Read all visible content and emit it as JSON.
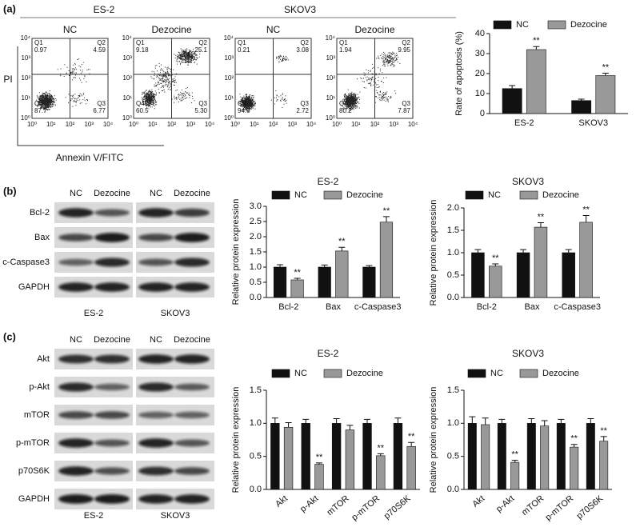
{
  "panel_labels": [
    "(a)",
    "(b)",
    "(c)"
  ],
  "panel_a": {
    "groups": [
      "ES-2",
      "SKOV3"
    ],
    "y_label": "PI",
    "x_label": "Annexin V/FITC",
    "axis_ticks": [
      "10⁰",
      "10¹",
      "10²",
      "10³",
      "10⁴"
    ],
    "plots": [
      {
        "title": "NC",
        "quadrants": [
          {
            "name": "Q1",
            "value": "0.97"
          },
          {
            "name": "Q2",
            "value": "4.59"
          },
          {
            "name": "Q3",
            "value": "6.77"
          },
          {
            "name": "Q4",
            "value": "87.7"
          }
        ]
      },
      {
        "title": "Dezocine",
        "quadrants": [
          {
            "name": "Q1",
            "value": "9.18"
          },
          {
            "name": "Q2",
            "value": "25.1"
          },
          {
            "name": "Q3",
            "value": "5.30"
          },
          {
            "name": "Q4",
            "value": "60.5"
          }
        ]
      },
      {
        "title": "NC",
        "quadrants": [
          {
            "name": "Q1",
            "value": "0.21"
          },
          {
            "name": "Q2",
            "value": "3.08"
          },
          {
            "name": "Q3",
            "value": "2.72"
          },
          {
            "name": "Q4",
            "value": "94.0"
          }
        ]
      },
      {
        "title": "Dezocine",
        "quadrants": [
          {
            "name": "Q1",
            "value": "1.94"
          },
          {
            "name": "Q2",
            "value": "9.95"
          },
          {
            "name": "Q3",
            "value": "7.87"
          },
          {
            "name": "Q4",
            "value": "80.2"
          }
        ]
      }
    ]
  },
  "panel_b": {
    "columns": [
      "NC",
      "Dezocine",
      "NC",
      "Dezocine"
    ],
    "rows": [
      "Bcl-2",
      "Bax",
      "c-Caspase3",
      "GAPDH"
    ],
    "cell_lines": [
      "ES-2",
      "SKOV3"
    ]
  },
  "panel_c": {
    "columns": [
      "NC",
      "Dezocine",
      "NC",
      "Dezocine"
    ],
    "rows": [
      "Akt",
      "p-Akt",
      "mTOR",
      "p-mTOR",
      "p70S6K",
      "GAPDH"
    ],
    "cell_lines": [
      "ES-2",
      "SKOV3"
    ]
  },
  "chart_data": [
    {
      "type": "bar",
      "y_label": "Rate of apoptosis (%)",
      "categories": [
        "ES-2",
        "SKOV3"
      ],
      "series": [
        {
          "name": "NC",
          "color": "#111111",
          "values": [
            12.5,
            6.5
          ],
          "errors": [
            1.5,
            0.7
          ]
        },
        {
          "name": "Dezocine",
          "color": "#999999",
          "values": [
            32,
            19
          ],
          "errors": [
            1.5,
            1.2
          ],
          "annotations": [
            "**",
            "**"
          ]
        }
      ],
      "ylim": [
        0,
        40
      ],
      "yticks": [
        0,
        10,
        20,
        30,
        40
      ]
    },
    {
      "type": "bar",
      "title": "ES-2",
      "y_label": "Relative protein expression",
      "categories": [
        "Bcl-2",
        "Bax",
        "c-Caspase3"
      ],
      "series": [
        {
          "name": "NC",
          "color": "#111111",
          "values": [
            1.0,
            1.0,
            1.0
          ],
          "errors": [
            0.08,
            0.07,
            0.05
          ]
        },
        {
          "name": "Dezocine",
          "color": "#999999",
          "values": [
            0.58,
            1.53,
            2.48
          ],
          "errors": [
            0.05,
            0.12,
            0.18
          ],
          "annotations": [
            "**",
            "**",
            "**"
          ]
        }
      ],
      "ylim": [
        0,
        3
      ],
      "yticks": [
        {
          "value": 0,
          "label": "0.0"
        },
        {
          "value": 0.5,
          "label": "0.5"
        },
        {
          "value": 1,
          "label": "1.0"
        },
        {
          "value": 1.5,
          "label": "1.5"
        },
        {
          "value": 2,
          "label": "2.0"
        },
        {
          "value": 2.5,
          "label": "2.5"
        },
        {
          "value": 3,
          "label": "3.0"
        }
      ]
    },
    {
      "type": "bar",
      "title": "SKOV3",
      "y_label": "Relative protein expression",
      "categories": [
        "Bcl-2",
        "Bax",
        "c-Caspase3"
      ],
      "series": [
        {
          "name": "NC",
          "color": "#111111",
          "values": [
            1.0,
            1.0,
            1.0
          ],
          "errors": [
            0.07,
            0.07,
            0.07
          ]
        },
        {
          "name": "Dezocine",
          "color": "#999999",
          "values": [
            0.7,
            1.57,
            1.68
          ],
          "errors": [
            0.05,
            0.1,
            0.15
          ],
          "annotations": [
            "**",
            "**",
            "**"
          ]
        }
      ],
      "ylim": [
        0,
        2
      ],
      "yticks": [
        {
          "value": 0,
          "label": "0.0"
        },
        {
          "value": 0.5,
          "label": "0.5"
        },
        {
          "value": 1,
          "label": "1.0"
        },
        {
          "value": 1.5,
          "label": "1.5"
        },
        {
          "value": 2,
          "label": "2.0"
        }
      ]
    },
    {
      "type": "bar",
      "title": "ES-2",
      "y_label": "Relative protein expression",
      "categories": [
        "Akt",
        "p-Akt",
        "mTOR",
        "p-mTOR",
        "p70S6K"
      ],
      "series": [
        {
          "name": "NC",
          "color": "#111111",
          "values": [
            1.0,
            1.0,
            1.0,
            1.0,
            1.0
          ],
          "errors": [
            0.08,
            0.06,
            0.07,
            0.06,
            0.08
          ]
        },
        {
          "name": "Dezocine",
          "color": "#999999",
          "values": [
            0.94,
            0.38,
            0.9,
            0.51,
            0.65
          ],
          "errors": [
            0.07,
            0.02,
            0.07,
            0.03,
            0.06
          ],
          "annotations": [
            null,
            "**",
            null,
            "**",
            "**"
          ]
        }
      ],
      "ylim": [
        0,
        1.5
      ],
      "yticks": [
        {
          "value": 0,
          "label": "0.0"
        },
        {
          "value": 0.5,
          "label": "0.5"
        },
        {
          "value": 1,
          "label": "1.0"
        },
        {
          "value": 1.5,
          "label": "1.5"
        }
      ]
    },
    {
      "type": "bar",
      "title": "SKOV3",
      "y_label": "Relative protein expression",
      "categories": [
        "Akt",
        "p-Akt",
        "mTOR",
        "p-mTOR",
        "p70S6K"
      ],
      "series": [
        {
          "name": "NC",
          "color": "#111111",
          "values": [
            1.0,
            1.0,
            1.0,
            1.0,
            1.0
          ],
          "errors": [
            0.1,
            0.06,
            0.07,
            0.06,
            0.07
          ]
        },
        {
          "name": "Dezocine",
          "color": "#999999",
          "values": [
            0.98,
            0.41,
            0.96,
            0.64,
            0.73
          ],
          "errors": [
            0.1,
            0.03,
            0.08,
            0.04,
            0.07
          ],
          "annotations": [
            null,
            "**",
            null,
            "**",
            "**"
          ]
        }
      ],
      "ylim": [
        0,
        1.5
      ],
      "yticks": [
        {
          "value": 0,
          "label": "0.0"
        },
        {
          "value": 0.5,
          "label": "0.5"
        },
        {
          "value": 1,
          "label": "1.0"
        },
        {
          "value": 1.5,
          "label": "1.5"
        }
      ]
    }
  ]
}
